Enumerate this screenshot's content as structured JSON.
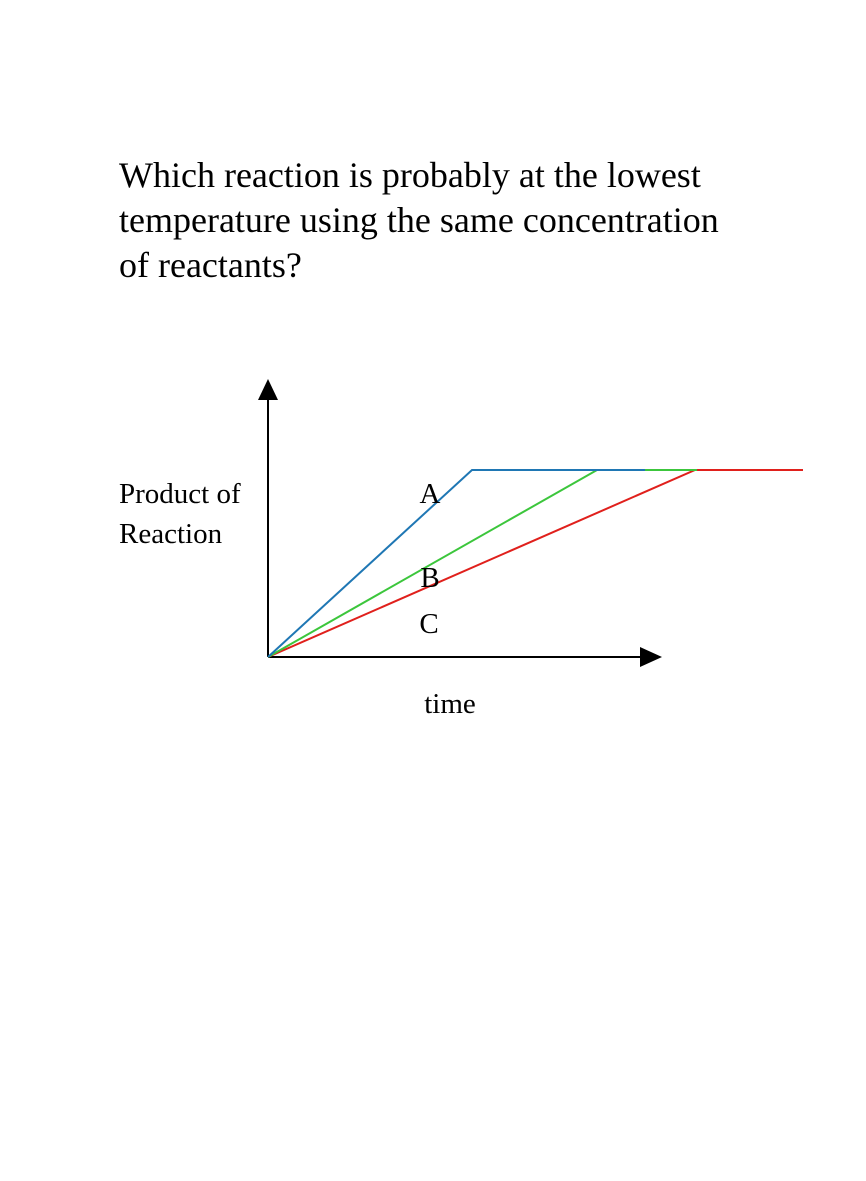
{
  "question": [
    "Which reaction is probably at the lowest",
    "temperature using the same concentration",
    "of reactants?"
  ],
  "graph": {
    "y_label": [
      "Product of",
      "Reaction"
    ],
    "x_label": "time",
    "curves": [
      {
        "label": "A"
      },
      {
        "label": "B"
      },
      {
        "label": "C"
      }
    ]
  }
}
